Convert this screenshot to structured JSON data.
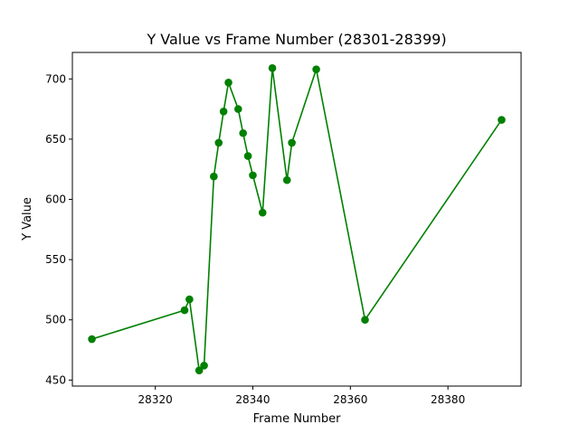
{
  "chart_data": {
    "type": "line",
    "title": "Y Value vs Frame Number (28301-28399)",
    "xlabel": "Frame Number",
    "ylabel": "Y Value",
    "xlim": [
      28303,
      28395
    ],
    "ylim": [
      445,
      722
    ],
    "xticks": [
      28320,
      28340,
      28360,
      28380
    ],
    "yticks": [
      450,
      500,
      550,
      600,
      650,
      700
    ],
    "grid": false,
    "legend": "none",
    "series": [
      {
        "color": "#008000",
        "marker": "circle",
        "points": [
          {
            "x": 28307,
            "y": 484
          },
          {
            "x": 28326,
            "y": 508
          },
          {
            "x": 28327,
            "y": 517
          },
          {
            "x": 28329,
            "y": 458
          },
          {
            "x": 28330,
            "y": 462
          },
          {
            "x": 28332,
            "y": 619
          },
          {
            "x": 28333,
            "y": 647
          },
          {
            "x": 28334,
            "y": 673
          },
          {
            "x": 28335,
            "y": 697
          },
          {
            "x": 28337,
            "y": 675
          },
          {
            "x": 28338,
            "y": 655
          },
          {
            "x": 28339,
            "y": 636
          },
          {
            "x": 28340,
            "y": 620
          },
          {
            "x": 28342,
            "y": 589
          },
          {
            "x": 28344,
            "y": 709
          },
          {
            "x": 28347,
            "y": 616
          },
          {
            "x": 28348,
            "y": 647
          },
          {
            "x": 28353,
            "y": 708
          },
          {
            "x": 28363,
            "y": 500
          },
          {
            "x": 28391,
            "y": 666
          }
        ]
      }
    ]
  }
}
